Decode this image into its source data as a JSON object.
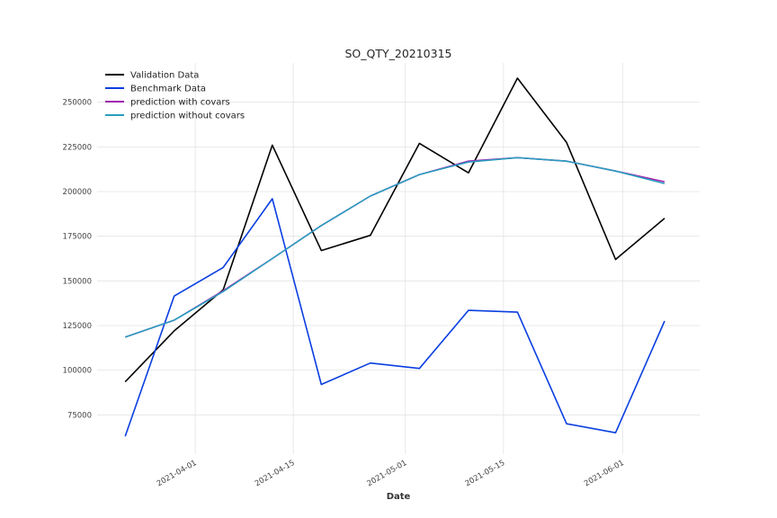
{
  "chart_data": {
    "type": "line",
    "title": "SO_QTY_20210315",
    "xlabel": "Date",
    "ylabel": "",
    "x": [
      "2021-03-22",
      "2021-03-29",
      "2021-04-05",
      "2021-04-12",
      "2021-04-19",
      "2021-04-26",
      "2021-05-03",
      "2021-05-10",
      "2021-05-17",
      "2021-05-24",
      "2021-05-31",
      "2021-06-07"
    ],
    "xticks": [
      "2021-04-01",
      "2021-04-15",
      "2021-05-01",
      "2021-05-15",
      "2021-06-01"
    ],
    "xlim": [
      "2021-03-18",
      "2021-06-12"
    ],
    "ylim": [
      53000,
      272000
    ],
    "yticks": [
      75000,
      100000,
      125000,
      150000,
      175000,
      200000,
      225000,
      250000
    ],
    "grid": true,
    "legend_position": "top-left",
    "series": [
      {
        "name": "Validation Data",
        "color": "#000000",
        "values": [
          93500,
          122000,
          145000,
          226000,
          167000,
          175500,
          227000,
          210500,
          263500,
          227500,
          162000,
          185000
        ]
      },
      {
        "name": "Benchmark Data",
        "color": "#0a3ee0",
        "values": [
          63000,
          141500,
          157500,
          196000,
          92000,
          104000,
          101000,
          133500,
          132500,
          70000,
          65000,
          127500
        ]
      },
      {
        "name": "prediction with covars",
        "color": "#a020b0",
        "values": [
          118500,
          128000,
          144500,
          162500,
          181000,
          197500,
          209500,
          217000,
          219000,
          217000,
          211500,
          205500
        ]
      },
      {
        "name": "prediction without covars",
        "color": "#2a9dbf",
        "values": [
          118500,
          128000,
          144000,
          162500,
          181000,
          197500,
          209500,
          216500,
          219000,
          217000,
          211500,
          204500
        ]
      }
    ]
  }
}
